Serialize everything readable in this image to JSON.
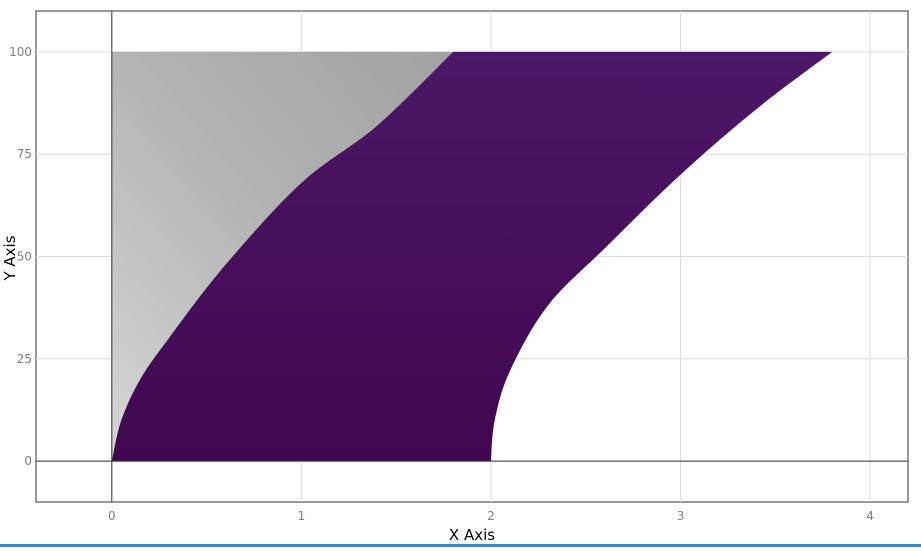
{
  "chart_data": {
    "type": "area",
    "title": "",
    "xlabel": "X Axis",
    "ylabel": "Y Axis",
    "xlim": [
      -0.4,
      4.2
    ],
    "ylim": [
      -10,
      110
    ],
    "x_ticks": [
      0,
      1,
      2,
      3,
      4
    ],
    "y_ticks": [
      0,
      25,
      50,
      75,
      100
    ],
    "x_tick_labels": [
      "0",
      "1",
      "2",
      "3",
      "4"
    ],
    "y_tick_labels": [
      "0",
      "25",
      "50",
      "75",
      "100"
    ],
    "grid": true,
    "legend": "none",
    "regions": [
      {
        "role": "gray-area",
        "color": "#a6a6a6",
        "gradient_light": "#d4d4d4",
        "boundary": [
          {
            "x": 0,
            "y": 0
          },
          {
            "x": 0,
            "y": 100
          },
          {
            "x": 1.8,
            "y": 100
          },
          {
            "x": 1.4,
            "y": 82
          },
          {
            "x": 1.0,
            "y": 68
          },
          {
            "x": 0.6,
            "y": 48
          },
          {
            "x": 0.3,
            "y": 30
          },
          {
            "x": 0.1,
            "y": 14
          },
          {
            "x": 0.0,
            "y": 0
          }
        ]
      },
      {
        "role": "purple-band",
        "color": "#440b55",
        "color_top": "#4a1665",
        "left_edge": [
          {
            "x": 0.0,
            "y": 0
          },
          {
            "x": 0.05,
            "y": 10
          },
          {
            "x": 0.15,
            "y": 20
          },
          {
            "x": 0.3,
            "y": 30
          },
          {
            "x": 0.6,
            "y": 48
          },
          {
            "x": 1.0,
            "y": 68
          },
          {
            "x": 1.4,
            "y": 82
          },
          {
            "x": 1.8,
            "y": 100
          }
        ],
        "top_edge": [
          {
            "x": 1.8,
            "y": 100
          },
          {
            "x": 2.6,
            "y": 100
          },
          {
            "x": 3.3,
            "y": 100
          },
          {
            "x": 3.8,
            "y": 100
          }
        ],
        "right_edge": [
          {
            "x": 3.8,
            "y": 100
          },
          {
            "x": 3.4,
            "y": 86
          },
          {
            "x": 3.0,
            "y": 70
          },
          {
            "x": 2.6,
            "y": 52
          },
          {
            "x": 2.3,
            "y": 38
          },
          {
            "x": 2.1,
            "y": 22
          },
          {
            "x": 2.02,
            "y": 10
          },
          {
            "x": 2.0,
            "y": 0
          }
        ],
        "bottom_edge": [
          {
            "x": 2.0,
            "y": 0
          },
          {
            "x": 0.0,
            "y": 0
          }
        ]
      }
    ],
    "reference_lines": {
      "x_zero": 0,
      "y_zero": 0
    },
    "colors": {
      "axis": "#333333",
      "grid": "#dcdcdc",
      "tick_text": "#7f7f7f",
      "label_text": "#000000"
    }
  }
}
